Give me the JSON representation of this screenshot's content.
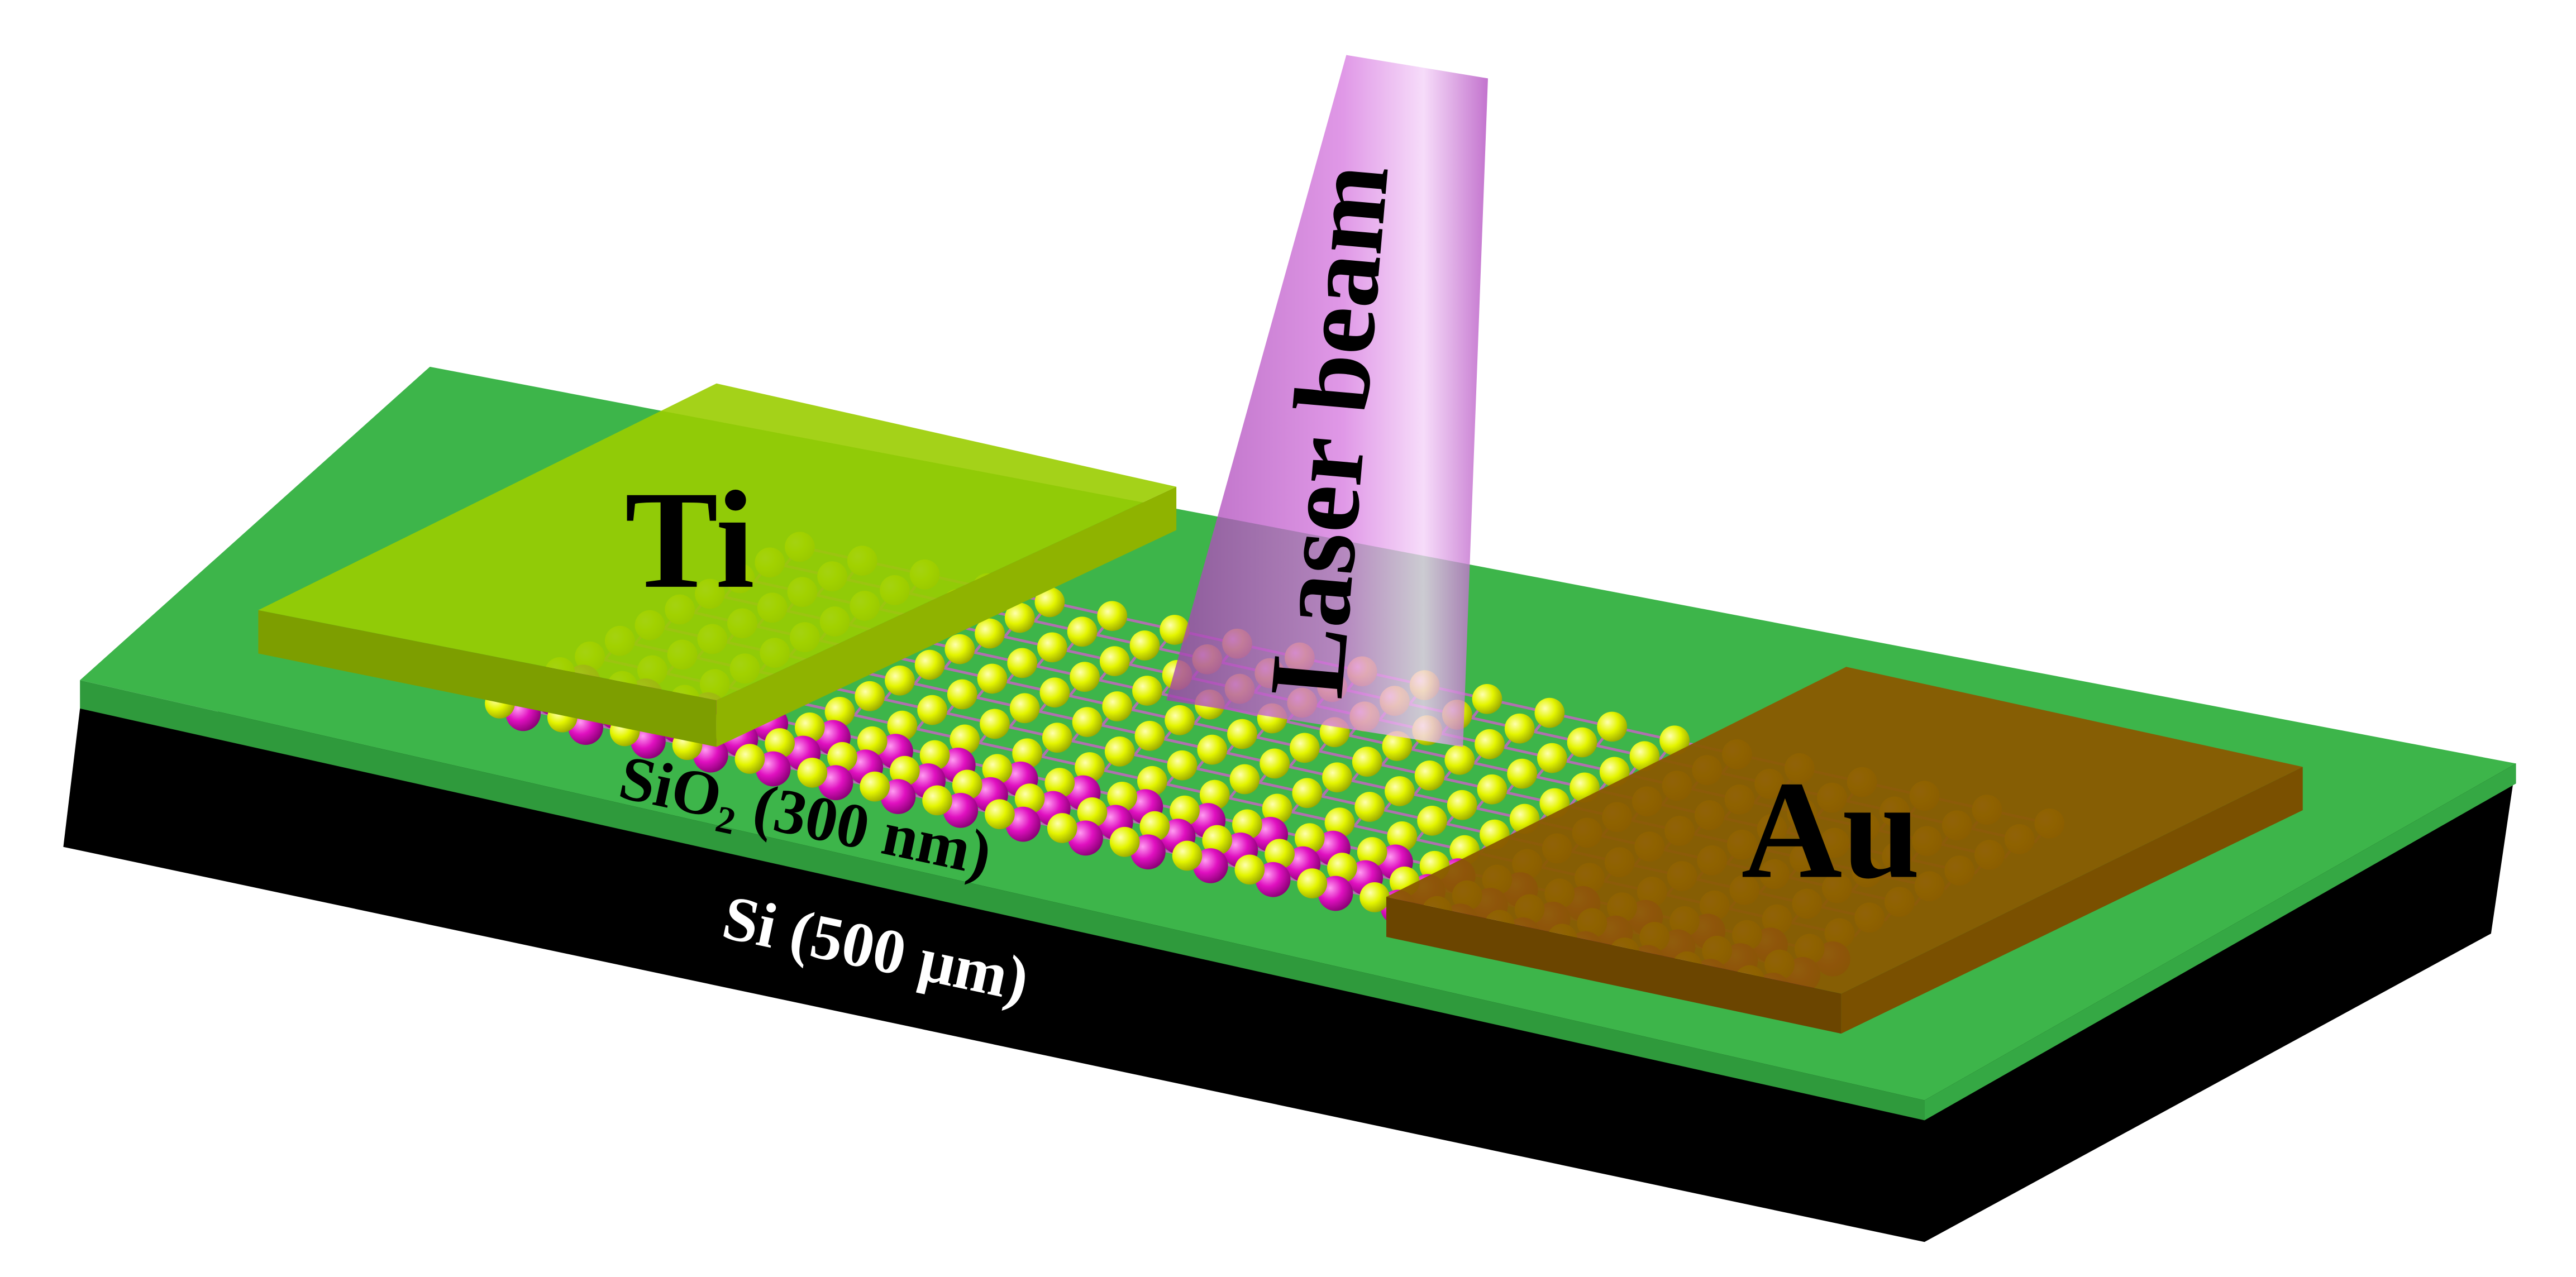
{
  "diagram": {
    "labels": {
      "laser": "Laser beam",
      "ti": "Ti",
      "au": "Au",
      "sio2": "SiO₂ (300 nm)",
      "si": "Si (500 μm)"
    },
    "colors": {
      "background": "#ffffff",
      "si_substrate": "#000000",
      "sio2_layer": "#3db54a",
      "ti_electrode": "#9acd00",
      "au_electrode": "#8a5a00",
      "atom_yellow": "#e4f500",
      "atom_magenta": "#e010c0",
      "laser_beam": "#c85ad2"
    }
  }
}
